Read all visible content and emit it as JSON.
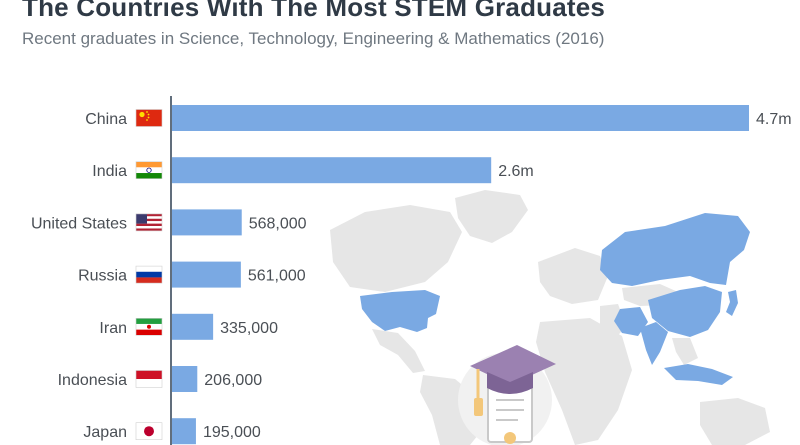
{
  "title": "The Countries With The Most STEM Graduates",
  "subtitle": "Recent graduates in Science, Technology, Engineering & Mathematics (2016)",
  "colors": {
    "bar": "#7aa9e3",
    "map_land": "#e6e6e6",
    "map_highlight": "#7aa9e3",
    "text": "#4a4f55",
    "axis": "#2d3e50"
  },
  "chart_data": {
    "type": "bar",
    "orientation": "horizontal",
    "title": "The Countries With The Most STEM Graduates",
    "subtitle": "Recent graduates in Science, Technology, Engineering & Mathematics (2016)",
    "categories": [
      "China",
      "India",
      "United States",
      "Russia",
      "Iran",
      "Indonesia",
      "Japan"
    ],
    "values": [
      4700000,
      2600000,
      568000,
      561000,
      335000,
      206000,
      195000
    ],
    "labels": [
      "4.7m",
      "2.6m",
      "568,000",
      "561,000",
      "335,000",
      "206,000",
      "195,000"
    ],
    "flags": [
      "china-flag-icon",
      "india-flag-icon",
      "united-states-flag-icon",
      "russia-flag-icon",
      "iran-flag-icon",
      "indonesia-flag-icon",
      "japan-flag-icon"
    ],
    "xlim": [
      0,
      4700000
    ],
    "grid": false,
    "legend": "none"
  }
}
